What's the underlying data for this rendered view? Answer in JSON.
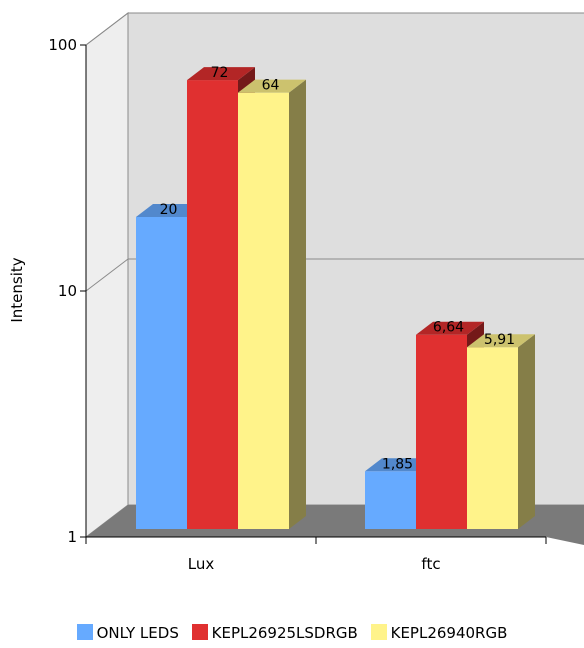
{
  "chart_data": {
    "type": "bar",
    "three_d": true,
    "scale": "log",
    "categories": [
      "Lux",
      "ftc"
    ],
    "series": [
      {
        "name": "ONLY LEDS",
        "values": [
          20,
          1.85
        ],
        "labels": [
          "20",
          "1,85"
        ],
        "color": "#66aaff"
      },
      {
        "name": "KEPL26925LSDRGB",
        "values": [
          72,
          6.64
        ],
        "labels": [
          "72",
          "6,64"
        ],
        "color": "#e03030"
      },
      {
        "name": "KEPL26940RGB",
        "values": [
          64,
          5.91
        ],
        "labels": [
          "64",
          "5,91"
        ],
        "color": "#fff38a"
      }
    ],
    "ylabel": "Intensity",
    "ylim": [
      1,
      100
    ],
    "yticks": [
      "1",
      "10",
      "100"
    ],
    "grid": true,
    "legend_position": "bottom"
  },
  "legend": {
    "items": [
      "ONLY LEDS",
      "KEPL26925LSDRGB",
      "KEPL26940RGB"
    ]
  }
}
